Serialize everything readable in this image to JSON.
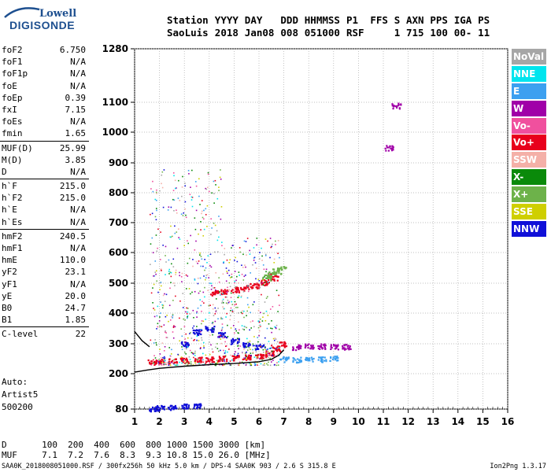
{
  "logo": {
    "line1": "Lowell",
    "line2": "DIGISONDE"
  },
  "header": {
    "labels": [
      "Station",
      "YYYY",
      "DAY",
      "DDD",
      "HHMMSS",
      "P1",
      "FFS",
      "S",
      "AXN",
      "PPS",
      "IGA",
      "PS"
    ],
    "values": [
      "SaoLuis",
      "2018",
      "Jan08",
      "008",
      "051000",
      "RSF",
      "",
      "1",
      "715",
      "100",
      "00-",
      "11"
    ]
  },
  "params": [
    {
      "k": "foF2",
      "v": "6.750"
    },
    {
      "k": "foF1",
      "v": "N/A"
    },
    {
      "k": "foF1p",
      "v": "N/A"
    },
    {
      "k": "foE",
      "v": "N/A"
    },
    {
      "k": "foEp",
      "v": "0.39"
    },
    {
      "k": "fxI",
      "v": "7.15"
    },
    {
      "k": "foEs",
      "v": "N/A"
    },
    {
      "k": "fmin",
      "v": "1.65"
    },
    {
      "sep": true
    },
    {
      "k": "MUF(D)",
      "v": "25.99"
    },
    {
      "k": "M(D)",
      "v": "3.85"
    },
    {
      "k": "D",
      "v": "N/A"
    },
    {
      "sep": true
    },
    {
      "k": "h`F",
      "v": "215.0"
    },
    {
      "k": "h`F2",
      "v": "215.0"
    },
    {
      "k": "h`E",
      "v": "N/A"
    },
    {
      "k": "h`Es",
      "v": "N/A"
    },
    {
      "sep": true
    },
    {
      "k": "hmF2",
      "v": "240.5"
    },
    {
      "k": "hmF1",
      "v": "N/A"
    },
    {
      "k": "hmE",
      "v": "110.0"
    },
    {
      "k": "yF2",
      "v": "23.1"
    },
    {
      "k": "yF1",
      "v": "N/A"
    },
    {
      "k": "yE",
      "v": "20.0"
    },
    {
      "k": "B0",
      "v": "24.7"
    },
    {
      "k": "B1",
      "v": "1.85"
    },
    {
      "sep": true
    },
    {
      "k": "C-level",
      "v": "22"
    }
  ],
  "auto": [
    "Auto:",
    "Artist5",
    "500200"
  ],
  "legend": [
    {
      "label": "NoVal",
      "color": "#a6a6a6"
    },
    {
      "label": "NNE",
      "color": "#00e5ee"
    },
    {
      "label": "E",
      "color": "#3ca0f0"
    },
    {
      "label": "W",
      "color": "#a000a8"
    },
    {
      "label": "Vo-",
      "color": "#f0509e"
    },
    {
      "label": "Vo+",
      "color": "#e8001c"
    },
    {
      "label": "SSW",
      "color": "#f4b0a8"
    },
    {
      "label": "X-",
      "color": "#0a8a0a"
    },
    {
      "label": "X+",
      "color": "#6db24a"
    },
    {
      "label": "SSE",
      "color": "#cfcf00"
    },
    {
      "label": "NNW",
      "color": "#1010d8"
    }
  ],
  "bottom": {
    "d_label": "D",
    "d_values": [
      "100",
      "200",
      "400",
      "600",
      "800",
      "1000",
      "1500",
      "3000"
    ],
    "d_unit": "[km]",
    "muf_label": "MUF",
    "muf_values": [
      "7.1",
      "7.2",
      "7.6",
      "8.3",
      "9.3",
      "10.8",
      "15.0",
      "26.0"
    ],
    "muf_unit": "[MHz]"
  },
  "footer": "SAA0K_2018008051000.RSF / 300fx256h 50 kHz 5.0 km / DPS-4 SAA0K 903 / 2.6 S 315.8 E",
  "version": "Ion2Png 1.3.17",
  "chart_data": {
    "type": "scatter",
    "title": "",
    "xlabel": "",
    "ylabel": "",
    "xlim": [
      1,
      16
    ],
    "ylim": [
      80,
      1280
    ],
    "x_ticks": [
      1,
      2,
      3,
      4,
      5,
      6,
      7,
      8,
      9,
      10,
      11,
      12,
      13,
      14,
      15,
      16
    ],
    "y_ticks": [
      80,
      200,
      300,
      400,
      500,
      600,
      700,
      800,
      900,
      1000,
      1100,
      1280
    ],
    "y_tick_labels": [
      "80",
      "200",
      "300",
      "400",
      "500",
      "600",
      "700",
      "800",
      "900",
      "1000",
      "1100",
      "1280"
    ],
    "grid": true,
    "legend_position": "right",
    "series": [
      {
        "color": "#e8001c",
        "x": [
          1.7,
          2.0,
          2.5,
          3.0,
          3.5,
          4.0,
          4.5,
          5.0,
          5.5,
          6.0,
          6.4,
          6.7,
          6.9
        ],
        "y": [
          240,
          242,
          244,
          246,
          248,
          250,
          252,
          254,
          257,
          262,
          270,
          285,
          300
        ]
      },
      {
        "color": "#e8001c",
        "x": [
          4.2,
          4.6,
          5.0,
          5.4,
          5.8,
          6.2,
          6.6
        ],
        "y": [
          470,
          474,
          480,
          486,
          494,
          504,
          520
        ]
      },
      {
        "color": "#6db24a",
        "x": [
          6.3,
          6.5,
          6.7,
          6.9
        ],
        "y": [
          520,
          530,
          540,
          550
        ]
      },
      {
        "color": "#a000a8",
        "x": [
          7.5,
          8.0,
          8.5,
          9.0,
          9.5
        ],
        "y": [
          290,
          295,
          293,
          292,
          291
        ]
      },
      {
        "color": "#3ca0f0",
        "x": [
          7.0,
          7.5,
          8.0,
          8.5,
          9.0
        ],
        "y": [
          250,
          248,
          250,
          250,
          252
        ]
      },
      {
        "color": "#1010d8",
        "x": [
          3.0,
          3.5,
          4.0,
          4.5,
          5.0,
          5.5,
          6.0
        ],
        "y": [
          300,
          340,
          350,
          330,
          310,
          300,
          290
        ]
      },
      {
        "color": "#1010d8",
        "x": [
          1.7,
          2.0,
          2.5,
          3.0,
          3.5
        ],
        "y": [
          82,
          85,
          88,
          90,
          92
        ]
      },
      {
        "color": "#a000a8",
        "x": [
          11.2,
          11.5
        ],
        "y": [
          950,
          1090
        ]
      }
    ],
    "traces": [
      {
        "name": "",
        "color": "#000000",
        "x": [
          1.0,
          1.5,
          2.0,
          3.0,
          4.0,
          5.0,
          6.0,
          6.5,
          6.8,
          7.0
        ],
        "y": [
          205,
          212,
          218,
          225,
          230,
          234,
          240,
          248,
          262,
          280
        ]
      },
      {
        "name": "",
        "color": "#000000",
        "x": [
          1.0,
          1.3,
          1.6
        ],
        "y": [
          340,
          310,
          290
        ]
      }
    ]
  }
}
